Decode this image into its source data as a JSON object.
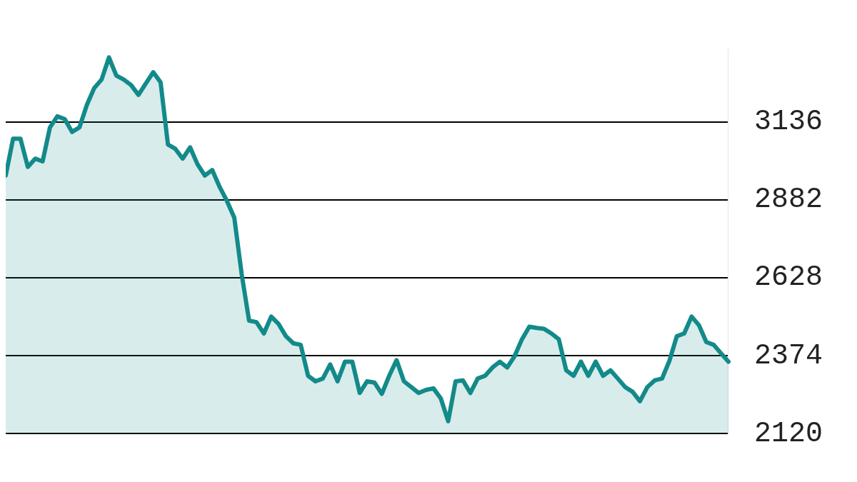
{
  "chart_data": {
    "type": "area",
    "categories": [
      null,
      null,
      null,
      null,
      null,
      null,
      null,
      null,
      null,
      null,
      null,
      null,
      null,
      null,
      null,
      null,
      null,
      null,
      null,
      null,
      null,
      null,
      null,
      null,
      null,
      null,
      null,
      null,
      null,
      null,
      null,
      null,
      null,
      null,
      null,
      null,
      null,
      null,
      null,
      null,
      null,
      null,
      null,
      null,
      null,
      null,
      null,
      null,
      null,
      null,
      null,
      null,
      null,
      null,
      null,
      null,
      null,
      null,
      null,
      null,
      null,
      null,
      null,
      null,
      null,
      null,
      null,
      null,
      null,
      null,
      null,
      null,
      null,
      null,
      null,
      null,
      null,
      null,
      null,
      null,
      null,
      null,
      null,
      null,
      null,
      null,
      null,
      null,
      null,
      null,
      null,
      null,
      null,
      null,
      null,
      null,
      null,
      null,
      null
    ],
    "series": [
      {
        "color": "#138a8a",
        "values": [
          2961,
          3081,
          3081,
          2989,
          3016,
          3007,
          3118,
          3154,
          3145,
          3103,
          3118,
          3191,
          3246,
          3274,
          3346,
          3287,
          3274,
          3256,
          3224,
          3261,
          3298,
          3265,
          3062,
          3048,
          3016,
          3053,
          2998,
          2961,
          2979,
          2924,
          2878,
          2823,
          2639,
          2488,
          2483,
          2446,
          2501,
          2477,
          2437,
          2414,
          2409,
          2308,
          2290,
          2299,
          2345,
          2290,
          2354,
          2354,
          2252,
          2290,
          2286,
          2249,
          2308,
          2359,
          2290,
          2271,
          2252,
          2262,
          2267,
          2234,
          2160,
          2290,
          2293,
          2252,
          2299,
          2308,
          2335,
          2354,
          2335,
          2372,
          2427,
          2468,
          2464,
          2461,
          2446,
          2427,
          2326,
          2308,
          2354,
          2308,
          2354,
          2308,
          2326,
          2299,
          2271,
          2256,
          2225,
          2271,
          2293,
          2299,
          2357,
          2437,
          2446,
          2501,
          2473,
          2418,
          2409,
          2381,
          2354
        ]
      }
    ],
    "ylim": [
      2120,
      3375
    ],
    "yticks": [
      2120,
      2374,
      2628,
      2882,
      3136
    ],
    "grid": "y",
    "legend": false
  }
}
